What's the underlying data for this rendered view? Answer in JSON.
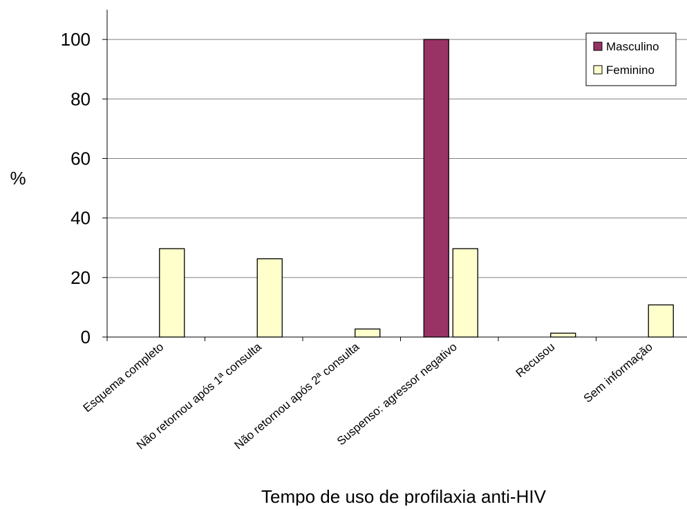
{
  "chart_data": {
    "type": "bar",
    "title": "",
    "xlabel": "Tempo de uso de profilaxia anti-HIV",
    "ylabel": "%",
    "ylim": [
      0,
      110
    ],
    "yticks": [
      "0",
      "20",
      "40",
      "60",
      "80",
      "100"
    ],
    "grid": true,
    "legend_position": "top-right",
    "categories": [
      "Esquema completo",
      "Não retornou após 1ª consulta",
      "Não retornou após 2ª consulta",
      "Suspenso: agressor negativo",
      "Recusou",
      "Sem informação"
    ],
    "series": [
      {
        "name": "Masculino",
        "color": "#993366",
        "values": [
          0,
          0,
          0,
          100,
          0,
          0
        ]
      },
      {
        "name": "Feminino",
        "color": "#ffffcc",
        "values": [
          29.7,
          26.3,
          2.7,
          29.7,
          1.3,
          10.8
        ]
      }
    ]
  }
}
